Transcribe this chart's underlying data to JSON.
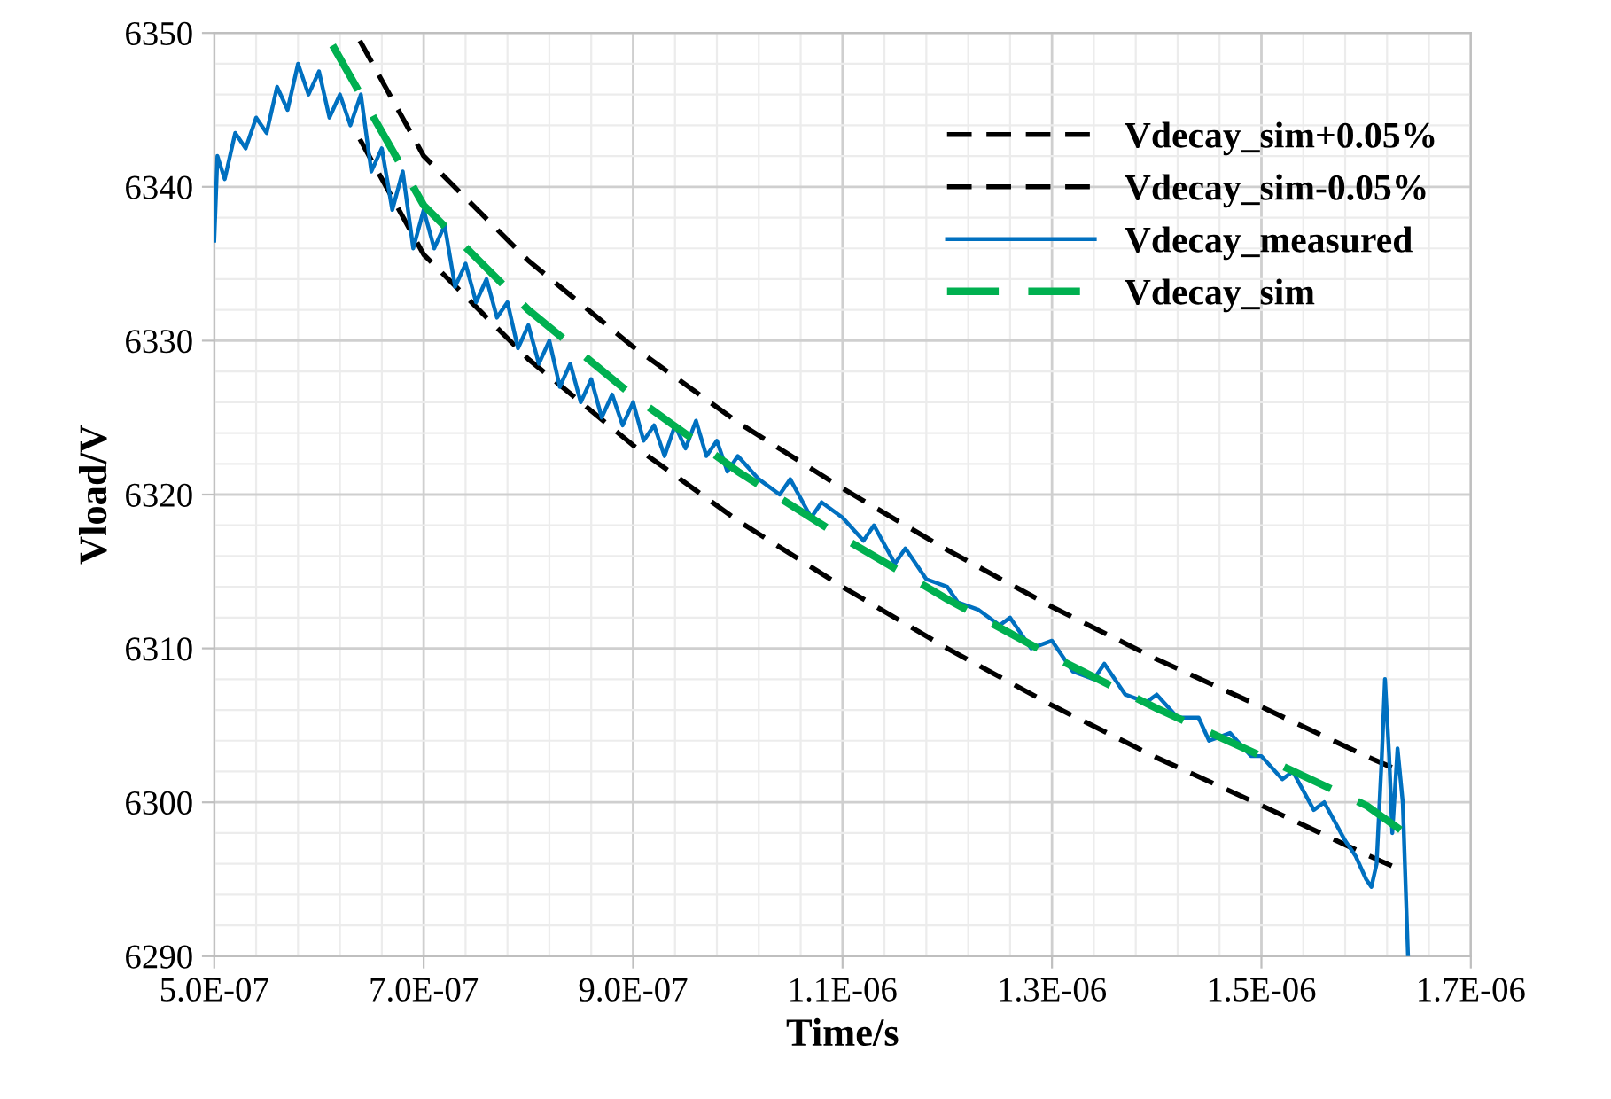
{
  "chart_data": {
    "type": "line",
    "xlabel": "Time/s",
    "ylabel": "Vload/V",
    "xlim": [
      5e-07,
      1.7e-06
    ],
    "ylim": [
      6290,
      6350
    ],
    "xticks": [
      {
        "value": 5e-07,
        "label": "5.0E-07"
      },
      {
        "value": 7e-07,
        "label": "7.0E-07"
      },
      {
        "value": 9e-07,
        "label": "9.0E-07"
      },
      {
        "value": 1.1e-06,
        "label": "1.1E-06"
      },
      {
        "value": 1.3e-06,
        "label": "1.3E-06"
      },
      {
        "value": 1.5e-06,
        "label": "1.5E-06"
      },
      {
        "value": 1.7e-06,
        "label": "1.7E-06"
      }
    ],
    "yticks": [
      6290,
      6300,
      6310,
      6320,
      6330,
      6340,
      6350
    ],
    "grid": true,
    "legend": "top right",
    "marker": "none",
    "series": [
      {
        "name": "Vdecay_sim+0.05%",
        "color": "#000000",
        "line_style": "dashed",
        "x": [
          6.39e-07,
          7e-07,
          8e-07,
          9e-07,
          1e-06,
          1.1e-06,
          1.2e-06,
          1.3e-06,
          1.4e-06,
          1.5e-06,
          1.6e-06,
          1.63e-06
        ],
        "values": [
          6349.5,
          6342.0,
          6335.2,
          6329.6,
          6324.7,
          6320.4,
          6316.4,
          6312.7,
          6309.3,
          6306.2,
          6303.0,
          6302.1
        ]
      },
      {
        "name": "Vdecay_sim-0.05%",
        "color": "#000000",
        "line_style": "dashed",
        "x": [
          6.39e-07,
          7e-07,
          8e-07,
          9e-07,
          1e-06,
          1.1e-06,
          1.2e-06,
          1.3e-06,
          1.4e-06,
          1.5e-06,
          1.6e-06,
          1.63e-06
        ],
        "values": [
          6343.1,
          6335.6,
          6328.8,
          6323.2,
          6318.3,
          6314.0,
          6310.0,
          6306.3,
          6302.9,
          6299.8,
          6296.6,
          6295.7
        ]
      },
      {
        "name": "Vdecay_measured",
        "color": "#0070c0",
        "line_style": "solid",
        "x": [
          5e-07,
          5.03e-07,
          5.1e-07,
          5.2e-07,
          5.3e-07,
          5.4e-07,
          5.5e-07,
          5.6e-07,
          5.7e-07,
          5.8e-07,
          5.9e-07,
          6e-07,
          6.1e-07,
          6.2e-07,
          6.3e-07,
          6.4e-07,
          6.5e-07,
          6.6e-07,
          6.7e-07,
          6.8e-07,
          6.9e-07,
          7e-07,
          7.1e-07,
          7.2e-07,
          7.3e-07,
          7.4e-07,
          7.5e-07,
          7.6e-07,
          7.7e-07,
          7.8e-07,
          7.9e-07,
          8e-07,
          8.1e-07,
          8.2e-07,
          8.3e-07,
          8.4e-07,
          8.5e-07,
          8.6e-07,
          8.7e-07,
          8.8e-07,
          8.9e-07,
          9e-07,
          9.1e-07,
          9.2e-07,
          9.3e-07,
          9.4e-07,
          9.5e-07,
          9.6e-07,
          9.7e-07,
          9.8e-07,
          9.9e-07,
          1e-06,
          1.02e-06,
          1.04e-06,
          1.05e-06,
          1.07e-06,
          1.08e-06,
          1.1e-06,
          1.12e-06,
          1.13e-06,
          1.15e-06,
          1.16e-06,
          1.18e-06,
          1.2e-06,
          1.21e-06,
          1.23e-06,
          1.25e-06,
          1.26e-06,
          1.28e-06,
          1.3e-06,
          1.32e-06,
          1.34e-06,
          1.35e-06,
          1.37e-06,
          1.39e-06,
          1.4e-06,
          1.42e-06,
          1.44e-06,
          1.45e-06,
          1.47e-06,
          1.49e-06,
          1.5e-06,
          1.52e-06,
          1.53e-06,
          1.55e-06,
          1.56e-06,
          1.58e-06,
          1.59e-06,
          1.6e-06,
          1.605e-06,
          1.61e-06,
          1.615e-06,
          1.618e-06,
          1.622e-06,
          1.625e-06,
          1.63e-06,
          1.635e-06,
          1.64e-06
        ],
        "values": [
          6336.5,
          6342,
          6340.5,
          6343.5,
          6342.5,
          6344.5,
          6343.5,
          6346.5,
          6345,
          6348,
          6346,
          6347.5,
          6344.5,
          6346,
          6344,
          6346,
          6341,
          6342.5,
          6338.5,
          6341,
          6336,
          6338.5,
          6336,
          6337.5,
          6333.5,
          6335,
          6332.5,
          6334,
          6331.5,
          6332.5,
          6329.5,
          6331,
          6328.5,
          6330,
          6327,
          6328.5,
          6326,
          6327.5,
          6325,
          6326.5,
          6324.5,
          6326,
          6323.5,
          6324.5,
          6322.5,
          6324.5,
          6323,
          6324.8,
          6322.5,
          6323.5,
          6321.5,
          6322.5,
          6321,
          6320,
          6321,
          6318.5,
          6319.5,
          6318.5,
          6317,
          6318,
          6315.5,
          6316.5,
          6314.5,
          6314,
          6313,
          6312.5,
          6311.5,
          6312,
          6310,
          6310.5,
          6308.5,
          6308,
          6309,
          6307,
          6306.5,
          6307,
          6305.5,
          6305.5,
          6304,
          6304.5,
          6303,
          6303,
          6301.5,
          6302,
          6299.5,
          6300,
          6297.5,
          6296.5,
          6295,
          6294.5,
          6296,
          6303,
          6308,
          6303,
          6298,
          6303.5,
          6300,
          6290
        ]
      },
      {
        "name": "Vdecay_sim",
        "color": "#00b050",
        "line_style": "dashed",
        "x": [
          6.13e-07,
          7e-07,
          8e-07,
          9e-07,
          1e-06,
          1.1e-06,
          1.2e-06,
          1.3e-06,
          1.4e-06,
          1.5e-06,
          1.6e-06,
          1.637e-06
        ],
        "values": [
          6349.2,
          6338.8,
          6332.0,
          6326.4,
          6321.5,
          6317.2,
          6313.2,
          6309.5,
          6306.1,
          6303.0,
          6299.8,
          6298.0
        ]
      }
    ]
  }
}
